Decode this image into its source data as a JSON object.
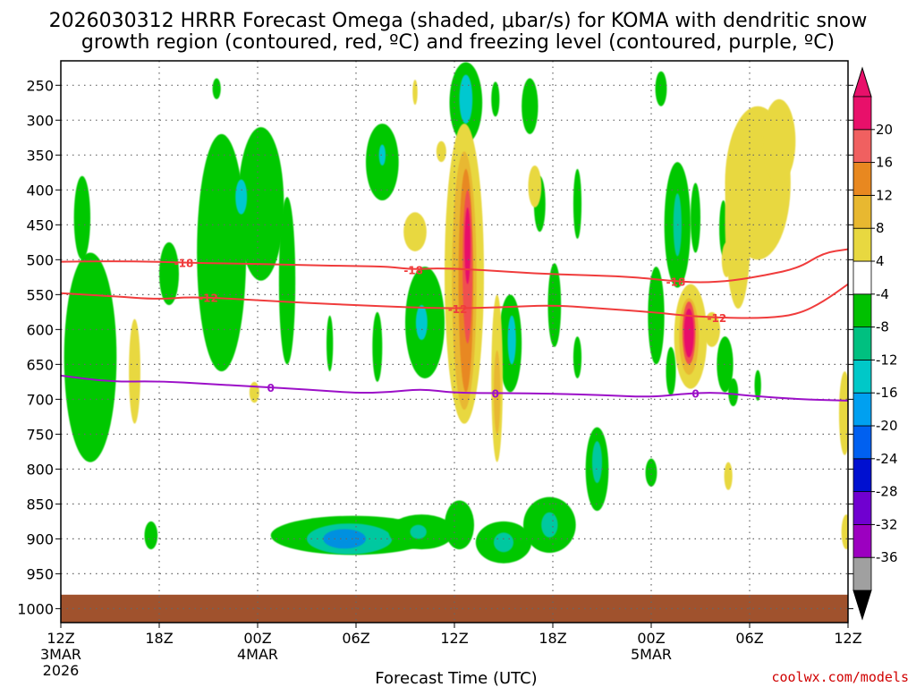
{
  "chart_data": {
    "type": "time-height cross-section",
    "title_line1": "2026030312 HRRR Forecast Omega (shaded, μbar/s) for KOMA with dendritic snow",
    "title_line2": "growth region (contoured, red, ºC) and freezing level (contoured, purple, ºC)",
    "xlabel": "Forecast Time (UTC)",
    "credit": "coolwx.com/models",
    "x_range_hours": [
      0,
      48
    ],
    "y_range_hPa": [
      1020,
      215
    ],
    "y_ticks": [
      {
        "v": 250,
        "label": "250"
      },
      {
        "v": 300,
        "label": "300"
      },
      {
        "v": 350,
        "label": "350"
      },
      {
        "v": 400,
        "label": "400"
      },
      {
        "v": 450,
        "label": "450"
      },
      {
        "v": 500,
        "label": "500"
      },
      {
        "v": 550,
        "label": "550"
      },
      {
        "v": 600,
        "label": "600"
      },
      {
        "v": 650,
        "label": "650"
      },
      {
        "v": 700,
        "label": "700"
      },
      {
        "v": 750,
        "label": "750"
      },
      {
        "v": 800,
        "label": "800"
      },
      {
        "v": 850,
        "label": "850"
      },
      {
        "v": 900,
        "label": "900"
      },
      {
        "v": 950,
        "label": "950"
      },
      {
        "v": 1000,
        "label": "1000"
      }
    ],
    "x_ticks": [
      {
        "h": 0,
        "label": "12Z",
        "sub1": "3MAR",
        "sub2": "2026"
      },
      {
        "h": 6,
        "label": "18Z",
        "sub1": "",
        "sub2": ""
      },
      {
        "h": 12,
        "label": "00Z",
        "sub1": "4MAR",
        "sub2": ""
      },
      {
        "h": 18,
        "label": "06Z",
        "sub1": "",
        "sub2": ""
      },
      {
        "h": 24,
        "label": "12Z",
        "sub1": "",
        "sub2": ""
      },
      {
        "h": 30,
        "label": "18Z",
        "sub1": "",
        "sub2": ""
      },
      {
        "h": 36,
        "label": "00Z",
        "sub1": "5MAR",
        "sub2": ""
      },
      {
        "h": 42,
        "label": "06Z",
        "sub1": "",
        "sub2": ""
      },
      {
        "h": 48,
        "label": "12Z",
        "sub1": "",
        "sub2": ""
      }
    ],
    "colorbar": {
      "colors": [
        "#a0a0a0",
        "#9c00c0",
        "#7000d0",
        "#0010d0",
        "#0060f0",
        "#00a0f0",
        "#00c8c8",
        "#00c080",
        "#00c000",
        "#ffffff",
        "#e8d840",
        "#e8b830",
        "#e88820",
        "#f06060",
        "#e8106a"
      ],
      "labels": [
        "-36",
        "-32",
        "-28",
        "-24",
        "-20",
        "-16",
        "-12",
        "-8",
        "-4",
        "4",
        "8",
        "12",
        "16",
        "20"
      ],
      "top_arrow_color": "#e8106a",
      "bottom_arrow_color": "#000000"
    },
    "shading_levels": {
      "green": "#00c800",
      "teal": "#00c8a0",
      "cyan": "#00c8d0",
      "blue": "#0090e0",
      "yellow": "#e8d840",
      "gold": "#e8b830",
      "orange": "#e88820",
      "red": "#f05050",
      "magenta": "#e8106a"
    },
    "omega_blobs": [
      {
        "c": "green",
        "h": 1.3,
        "p": 440,
        "hw": 0.5,
        "hp": 60
      },
      {
        "c": "green",
        "h": 1.8,
        "p": 640,
        "hw": 1.6,
        "hp": 150
      },
      {
        "c": "green",
        "h": 6.6,
        "p": 520,
        "hw": 0.6,
        "hp": 45
      },
      {
        "c": "yellow",
        "h": 4.5,
        "p": 660,
        "hw": 0.35,
        "hp": 75
      },
      {
        "c": "green",
        "h": 9.8,
        "p": 490,
        "hw": 1.5,
        "hp": 170
      },
      {
        "c": "green",
        "h": 12.2,
        "p": 420,
        "hw": 1.4,
        "hp": 110
      },
      {
        "c": "cyan",
        "h": 11.0,
        "p": 410,
        "hw": 0.35,
        "hp": 25
      },
      {
        "c": "green",
        "h": 9.5,
        "p": 255,
        "hw": 0.25,
        "hp": 15
      },
      {
        "c": "green",
        "h": 5.5,
        "p": 895,
        "hw": 0.4,
        "hp": 20
      },
      {
        "c": "green",
        "h": 13.8,
        "p": 530,
        "hw": 0.5,
        "hp": 120
      },
      {
        "c": "green",
        "h": 16.4,
        "p": 620,
        "hw": 0.2,
        "hp": 40
      },
      {
        "c": "yellow",
        "h": 11.8,
        "p": 690,
        "hw": 0.3,
        "hp": 15
      },
      {
        "c": "green",
        "h": 19.6,
        "p": 360,
        "hw": 1.0,
        "hp": 55
      },
      {
        "c": "cyan",
        "h": 19.6,
        "p": 350,
        "hw": 0.2,
        "hp": 15
      },
      {
        "c": "green",
        "h": 17.8,
        "p": 895,
        "hw": 5.0,
        "hp": 28
      },
      {
        "c": "teal",
        "h": 17.6,
        "p": 900,
        "hw": 2.6,
        "hp": 22
      },
      {
        "c": "blue",
        "h": 17.3,
        "p": 900,
        "hw": 1.3,
        "hp": 14
      },
      {
        "c": "yellow",
        "h": 21.6,
        "p": 260,
        "hw": 0.15,
        "hp": 18
      },
      {
        "c": "yellow",
        "h": 21.6,
        "p": 460,
        "hw": 0.7,
        "hp": 28
      },
      {
        "c": "yellow",
        "h": 23.2,
        "p": 345,
        "hw": 0.3,
        "hp": 15
      },
      {
        "c": "green",
        "h": 22.2,
        "p": 590,
        "hw": 1.2,
        "hp": 80
      },
      {
        "c": "cyan",
        "h": 22.0,
        "p": 590,
        "hw": 0.35,
        "hp": 25
      },
      {
        "c": "green",
        "h": 19.3,
        "p": 625,
        "hw": 0.3,
        "hp": 50
      },
      {
        "c": "green",
        "h": 22.0,
        "p": 890,
        "hw": 2.0,
        "hp": 25
      },
      {
        "c": "teal",
        "h": 21.8,
        "p": 890,
        "hw": 0.5,
        "hp": 10
      },
      {
        "c": "green",
        "h": 24.7,
        "p": 275,
        "hw": 1.0,
        "hp": 58
      },
      {
        "c": "cyan",
        "h": 24.7,
        "p": 270,
        "hw": 0.4,
        "hp": 35
      },
      {
        "c": "yellow",
        "h": 24.6,
        "p": 520,
        "hw": 1.2,
        "hp": 215
      },
      {
        "c": "gold",
        "h": 24.6,
        "p": 530,
        "hw": 0.75,
        "hp": 185
      },
      {
        "c": "orange",
        "h": 24.7,
        "p": 530,
        "hw": 0.45,
        "hp": 160
      },
      {
        "c": "red",
        "h": 24.8,
        "p": 510,
        "hw": 0.3,
        "hp": 110
      },
      {
        "c": "magenta",
        "h": 24.8,
        "p": 480,
        "hw": 0.18,
        "hp": 55
      },
      {
        "c": "green",
        "h": 24.3,
        "p": 880,
        "hw": 0.9,
        "hp": 35
      },
      {
        "c": "green",
        "h": 27.0,
        "p": 905,
        "hw": 1.7,
        "hp": 30
      },
      {
        "c": "teal",
        "h": 27.0,
        "p": 905,
        "hw": 0.6,
        "hp": 14
      },
      {
        "c": "green",
        "h": 26.5,
        "p": 270,
        "hw": 0.25,
        "hp": 25
      },
      {
        "c": "green",
        "h": 27.4,
        "p": 620,
        "hw": 0.7,
        "hp": 70
      },
      {
        "c": "cyan",
        "h": 27.5,
        "p": 615,
        "hw": 0.25,
        "hp": 35
      },
      {
        "c": "yellow",
        "h": 26.6,
        "p": 670,
        "hw": 0.35,
        "hp": 120
      },
      {
        "c": "gold",
        "h": 26.6,
        "p": 690,
        "hw": 0.2,
        "hp": 60
      },
      {
        "c": "green",
        "h": 28.6,
        "p": 280,
        "hw": 0.5,
        "hp": 40
      },
      {
        "c": "green",
        "h": 29.2,
        "p": 420,
        "hw": 0.35,
        "hp": 40
      },
      {
        "c": "yellow",
        "h": 28.9,
        "p": 395,
        "hw": 0.4,
        "hp": 30
      },
      {
        "c": "green",
        "h": 30.1,
        "p": 565,
        "hw": 0.4,
        "hp": 60
      },
      {
        "c": "green",
        "h": 29.8,
        "p": 880,
        "hw": 1.6,
        "hp": 40
      },
      {
        "c": "teal",
        "h": 29.8,
        "p": 880,
        "hw": 0.5,
        "hp": 18
      },
      {
        "c": "green",
        "h": 31.5,
        "p": 420,
        "hw": 0.25,
        "hp": 50
      },
      {
        "c": "green",
        "h": 31.5,
        "p": 640,
        "hw": 0.25,
        "hp": 30
      },
      {
        "c": "green",
        "h": 32.7,
        "p": 800,
        "hw": 0.7,
        "hp": 60
      },
      {
        "c": "teal",
        "h": 32.7,
        "p": 790,
        "hw": 0.3,
        "hp": 30
      },
      {
        "c": "green",
        "h": 36.6,
        "p": 255,
        "hw": 0.35,
        "hp": 25
      },
      {
        "c": "green",
        "h": 36.3,
        "p": 580,
        "hw": 0.5,
        "hp": 70
      },
      {
        "c": "green",
        "h": 37.6,
        "p": 450,
        "hw": 0.8,
        "hp": 90
      },
      {
        "c": "teal",
        "h": 37.6,
        "p": 450,
        "hw": 0.25,
        "hp": 45
      },
      {
        "c": "green",
        "h": 38.7,
        "p": 440,
        "hw": 0.3,
        "hp": 50
      },
      {
        "c": "yellow",
        "h": 38.4,
        "p": 610,
        "hw": 1.0,
        "hp": 75
      },
      {
        "c": "gold",
        "h": 38.3,
        "p": 610,
        "hw": 0.6,
        "hp": 55
      },
      {
        "c": "red",
        "h": 38.3,
        "p": 605,
        "hw": 0.4,
        "hp": 45
      },
      {
        "c": "magenta",
        "h": 38.3,
        "p": 605,
        "hw": 0.3,
        "hp": 35
      },
      {
        "c": "yellow",
        "h": 39.7,
        "p": 600,
        "hw": 0.5,
        "hp": 25
      },
      {
        "c": "green",
        "h": 37.2,
        "p": 660,
        "hw": 0.3,
        "hp": 35
      },
      {
        "c": "green",
        "h": 36.0,
        "p": 805,
        "hw": 0.35,
        "hp": 20
      },
      {
        "c": "green",
        "h": 40.5,
        "p": 650,
        "hw": 0.5,
        "hp": 40
      },
      {
        "c": "green",
        "h": 40.4,
        "p": 455,
        "hw": 0.25,
        "hp": 40
      },
      {
        "c": "yellow",
        "h": 42.5,
        "p": 390,
        "hw": 2.0,
        "hp": 110
      },
      {
        "c": "yellow",
        "h": 41.3,
        "p": 440,
        "hw": 0.8,
        "hp": 130
      },
      {
        "c": "yellow",
        "h": 43.8,
        "p": 330,
        "hw": 1.0,
        "hp": 60
      },
      {
        "c": "yellow",
        "h": 40.6,
        "p": 500,
        "hw": 0.3,
        "hp": 25
      },
      {
        "c": "green",
        "h": 41.0,
        "p": 690,
        "hw": 0.3,
        "hp": 20
      },
      {
        "c": "green",
        "h": 42.5,
        "p": 680,
        "hw": 0.2,
        "hp": 22
      },
      {
        "c": "yellow",
        "h": 40.7,
        "p": 810,
        "hw": 0.25,
        "hp": 20
      },
      {
        "c": "yellow",
        "h": 47.8,
        "p": 720,
        "hw": 0.35,
        "hp": 60
      },
      {
        "c": "yellow",
        "h": 47.9,
        "p": 890,
        "hw": 0.3,
        "hp": 25
      }
    ],
    "contours": [
      {
        "name": "-18C isotherm",
        "color": "#f03c3c",
        "label": "-18",
        "points": [
          [
            0,
            503
          ],
          [
            3,
            502
          ],
          [
            6,
            503
          ],
          [
            9,
            505
          ],
          [
            12,
            506
          ],
          [
            15,
            508
          ],
          [
            18,
            509
          ],
          [
            20,
            510
          ],
          [
            21.5,
            514
          ],
          [
            23,
            512
          ],
          [
            26,
            515
          ],
          [
            29,
            520
          ],
          [
            32,
            522
          ],
          [
            35,
            525
          ],
          [
            37,
            530
          ],
          [
            39,
            533
          ],
          [
            41,
            530
          ],
          [
            43,
            522
          ],
          [
            45,
            512
          ],
          [
            46.5,
            490
          ],
          [
            48,
            485
          ]
        ],
        "label_h": [
          7.5,
          21.5,
          37.5
        ]
      },
      {
        "name": "-12C isotherm",
        "color": "#f03c3c",
        "label": "-12",
        "points": [
          [
            0,
            548
          ],
          [
            3,
            552
          ],
          [
            6,
            557
          ],
          [
            8,
            553
          ],
          [
            12,
            558
          ],
          [
            15,
            562
          ],
          [
            18,
            565
          ],
          [
            21,
            568
          ],
          [
            24,
            570
          ],
          [
            27,
            568
          ],
          [
            30,
            565
          ],
          [
            33,
            570
          ],
          [
            36,
            575
          ],
          [
            38,
            580
          ],
          [
            40,
            583
          ],
          [
            43,
            584
          ],
          [
            45,
            578
          ],
          [
            46.5,
            560
          ],
          [
            48,
            535
          ]
        ],
        "label_h": [
          9,
          24.2,
          40
        ]
      },
      {
        "name": "0C freezing level",
        "color": "#9c10c8",
        "label": "0",
        "points": [
          [
            0,
            666
          ],
          [
            3,
            675
          ],
          [
            6,
            674
          ],
          [
            9,
            678
          ],
          [
            12,
            682
          ],
          [
            15,
            686
          ],
          [
            18,
            691
          ],
          [
            20,
            690
          ],
          [
            22,
            685
          ],
          [
            24,
            691
          ],
          [
            27,
            691
          ],
          [
            30,
            692
          ],
          [
            33,
            694
          ],
          [
            36,
            697
          ],
          [
            38,
            692
          ],
          [
            40,
            690
          ],
          [
            42,
            695
          ],
          [
            45,
            700
          ],
          [
            48,
            702
          ]
        ],
        "label_h": [
          12.8,
          26.5,
          38.7
        ]
      }
    ]
  }
}
